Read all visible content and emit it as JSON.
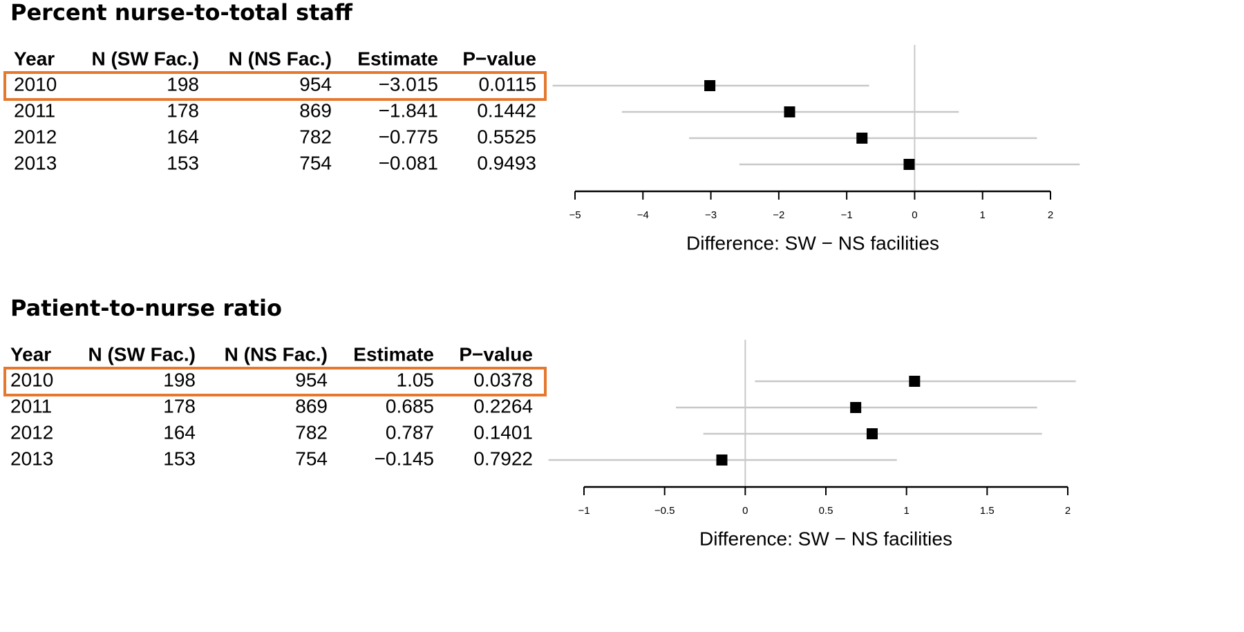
{
  "chart_data": [
    {
      "type": "forest",
      "title": "Percent nurse-to-total staff",
      "columns": [
        "Year",
        "N (SW Fac.)",
        "N (NS Fac.)",
        "Estimate",
        "P−value"
      ],
      "categories": [
        "2010",
        "2011",
        "2012",
        "2013"
      ],
      "n_sw": [
        198,
        178,
        164,
        153
      ],
      "n_ns": [
        954,
        869,
        782,
        754
      ],
      "values": [
        -3.015,
        -1.841,
        -0.775,
        -0.081
      ],
      "value_labels": [
        "−3.015",
        "−1.841",
        "−0.775",
        "−0.081"
      ],
      "p_values": [
        0.0115,
        0.1442,
        0.5525,
        0.9493
      ],
      "ci_low": [
        -5.33,
        -4.31,
        -3.32,
        -2.58
      ],
      "ci_high": [
        -0.67,
        0.65,
        1.8,
        2.43
      ],
      "xlim": [
        -5,
        2
      ],
      "xticks": [
        {
          "value": -5,
          "label": "−5"
        },
        {
          "value": -4,
          "label": "−4"
        },
        {
          "value": -3,
          "label": "−3"
        },
        {
          "value": -2,
          "label": "−2"
        },
        {
          "value": -1,
          "label": "−1"
        },
        0,
        1,
        2
      ],
      "xlabel": "Difference: SW − NS facilities",
      "refline": 0,
      "color": "#000000",
      "ci_color": "#c8c8c8",
      "highlight": "2010",
      "highlight_color": "#e6782e"
    },
    {
      "type": "forest",
      "title": "Patient-to-nurse ratio",
      "columns": [
        "Year",
        "N (SW Fac.)",
        "N (NS Fac.)",
        "Estimate",
        "P−value"
      ],
      "categories": [
        "2010",
        "2011",
        "2012",
        "2013"
      ],
      "n_sw": [
        198,
        178,
        164,
        153
      ],
      "n_ns": [
        954,
        869,
        782,
        754
      ],
      "values": [
        1.05,
        0.685,
        0.787,
        -0.145
      ],
      "value_labels": [
        "1.05",
        "0.685",
        "0.787",
        "−0.145"
      ],
      "p_values": [
        0.0378,
        0.2264,
        0.1401,
        0.7922
      ],
      "ci_low": [
        0.06,
        -0.43,
        -0.26,
        -1.22
      ],
      "ci_high": [
        2.05,
        1.81,
        1.84,
        0.94
      ],
      "xlim": [
        -1,
        2
      ],
      "xticks": [
        {
          "value": -1,
          "label": "−1"
        },
        {
          "value": -0.5,
          "label": "−0.5"
        },
        0,
        0.5,
        1,
        1.5,
        2
      ],
      "xlabel": "Difference: SW − NS facilities",
      "refline": 0,
      "color": "#000000",
      "ci_color": "#c8c8c8",
      "highlight": "2010",
      "highlight_color": "#e6782e"
    }
  ]
}
